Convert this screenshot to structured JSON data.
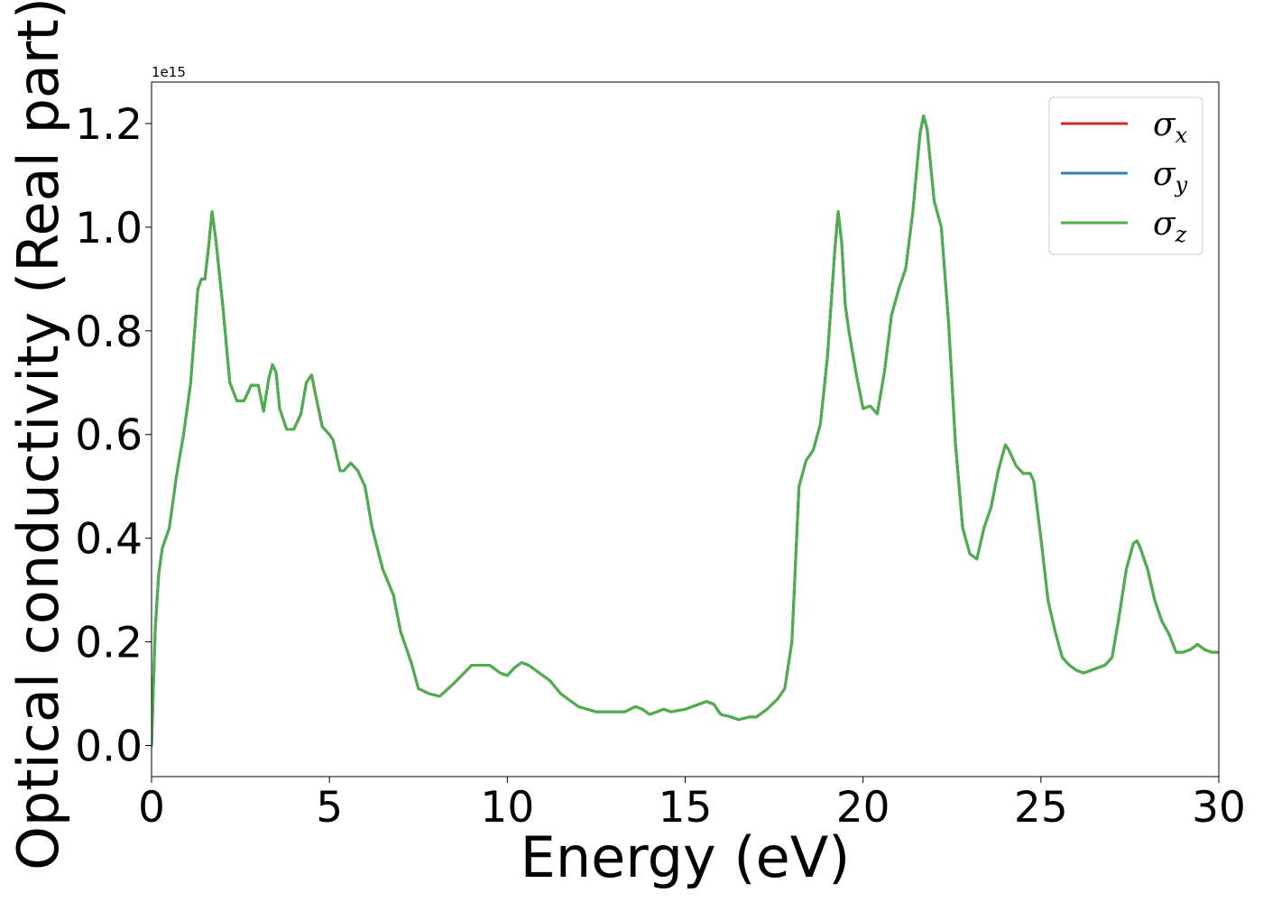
{
  "chart_data": {
    "type": "line",
    "xlabel": "Energy (eV)",
    "ylabel": "Optical conductivity (Real part)",
    "y_offset_text": "1e15",
    "y_scale_multiplier": 1000000000000000.0,
    "xlim": [
      0,
      30
    ],
    "ylim": [
      -0.06,
      1.28
    ],
    "x_ticks": [
      0,
      5,
      10,
      15,
      20,
      25,
      30
    ],
    "x_tick_labels": [
      "0",
      "5",
      "10",
      "15",
      "20",
      "25",
      "30"
    ],
    "y_ticks": [
      0.0,
      0.2,
      0.4,
      0.6,
      0.8,
      1.0,
      1.2
    ],
    "y_tick_labels": [
      "0.0",
      "0.2",
      "0.4",
      "0.6",
      "0.8",
      "1.0",
      "1.2"
    ],
    "grid": false,
    "legend_position": "top-right",
    "x": [
      0.0,
      0.1,
      0.2,
      0.3,
      0.5,
      0.7,
      0.9,
      1.1,
      1.3,
      1.4,
      1.5,
      1.6,
      1.7,
      1.8,
      2.0,
      2.2,
      2.4,
      2.6,
      2.8,
      3.0,
      3.15,
      3.3,
      3.4,
      3.5,
      3.6,
      3.8,
      4.0,
      4.2,
      4.35,
      4.5,
      4.6,
      4.8,
      5.0,
      5.1,
      5.3,
      5.4,
      5.6,
      5.8,
      6.0,
      6.2,
      6.5,
      6.8,
      7.0,
      7.3,
      7.5,
      7.8,
      8.1,
      8.5,
      9.0,
      9.5,
      9.8,
      10.0,
      10.2,
      10.4,
      10.6,
      10.8,
      11.0,
      11.2,
      11.5,
      12.0,
      12.5,
      13.0,
      13.3,
      13.6,
      13.8,
      14.0,
      14.2,
      14.4,
      14.6,
      15.0,
      15.4,
      15.6,
      15.8,
      16.0,
      16.3,
      16.5,
      16.8,
      17.0,
      17.3,
      17.6,
      17.8,
      18.0,
      18.1,
      18.2,
      18.4,
      18.6,
      18.8,
      19.0,
      19.2,
      19.3,
      19.4,
      19.5,
      19.6,
      19.8,
      20.0,
      20.2,
      20.4,
      20.6,
      20.8,
      21.0,
      21.2,
      21.4,
      21.6,
      21.7,
      21.8,
      22.0,
      22.2,
      22.4,
      22.6,
      22.8,
      23.0,
      23.2,
      23.4,
      23.6,
      23.8,
      24.0,
      24.1,
      24.3,
      24.5,
      24.7,
      24.8,
      25.0,
      25.2,
      25.4,
      25.6,
      25.8,
      26.0,
      26.2,
      26.4,
      26.6,
      26.8,
      27.0,
      27.2,
      27.4,
      27.6,
      27.7,
      27.8,
      28.0,
      28.2,
      28.4,
      28.6,
      28.8,
      29.0,
      29.2,
      29.4,
      29.6,
      29.8,
      30.0
    ],
    "series": [
      {
        "name": "σx",
        "color": "#d62728",
        "values": [
          0.0,
          0.22,
          0.33,
          0.38,
          0.42,
          0.52,
          0.6,
          0.7,
          0.88,
          0.9,
          0.9,
          0.96,
          1.03,
          0.98,
          0.85,
          0.7,
          0.665,
          0.665,
          0.695,
          0.695,
          0.645,
          0.71,
          0.735,
          0.72,
          0.65,
          0.61,
          0.61,
          0.64,
          0.7,
          0.715,
          0.68,
          0.615,
          0.6,
          0.59,
          0.53,
          0.53,
          0.545,
          0.53,
          0.5,
          0.42,
          0.34,
          0.29,
          0.22,
          0.16,
          0.11,
          0.1,
          0.095,
          0.12,
          0.155,
          0.155,
          0.14,
          0.135,
          0.15,
          0.16,
          0.155,
          0.145,
          0.135,
          0.125,
          0.1,
          0.075,
          0.065,
          0.065,
          0.065,
          0.075,
          0.07,
          0.06,
          0.065,
          0.07,
          0.065,
          0.07,
          0.08,
          0.085,
          0.08,
          0.06,
          0.055,
          0.05,
          0.055,
          0.055,
          0.07,
          0.09,
          0.11,
          0.2,
          0.35,
          0.5,
          0.55,
          0.57,
          0.62,
          0.75,
          0.95,
          1.03,
          0.97,
          0.85,
          0.8,
          0.72,
          0.65,
          0.655,
          0.64,
          0.72,
          0.83,
          0.88,
          0.92,
          1.03,
          1.18,
          1.215,
          1.19,
          1.05,
          1.0,
          0.82,
          0.58,
          0.42,
          0.37,
          0.36,
          0.42,
          0.46,
          0.53,
          0.58,
          0.57,
          0.54,
          0.525,
          0.525,
          0.51,
          0.4,
          0.28,
          0.22,
          0.17,
          0.155,
          0.145,
          0.14,
          0.145,
          0.15,
          0.155,
          0.17,
          0.25,
          0.34,
          0.39,
          0.395,
          0.38,
          0.34,
          0.28,
          0.24,
          0.215,
          0.18,
          0.18,
          0.185,
          0.195,
          0.185,
          0.18,
          0.18
        ]
      },
      {
        "name": "σy",
        "color": "#377eb8",
        "values": [
          0.0,
          0.22,
          0.33,
          0.38,
          0.42,
          0.52,
          0.6,
          0.7,
          0.88,
          0.9,
          0.9,
          0.96,
          1.03,
          0.98,
          0.85,
          0.7,
          0.665,
          0.665,
          0.695,
          0.695,
          0.645,
          0.71,
          0.735,
          0.72,
          0.65,
          0.61,
          0.61,
          0.64,
          0.7,
          0.715,
          0.68,
          0.615,
          0.6,
          0.59,
          0.53,
          0.53,
          0.545,
          0.53,
          0.5,
          0.42,
          0.34,
          0.29,
          0.22,
          0.16,
          0.11,
          0.1,
          0.095,
          0.12,
          0.155,
          0.155,
          0.14,
          0.135,
          0.15,
          0.16,
          0.155,
          0.145,
          0.135,
          0.125,
          0.1,
          0.075,
          0.065,
          0.065,
          0.065,
          0.075,
          0.07,
          0.06,
          0.065,
          0.07,
          0.065,
          0.07,
          0.08,
          0.085,
          0.08,
          0.06,
          0.055,
          0.05,
          0.055,
          0.055,
          0.07,
          0.09,
          0.11,
          0.2,
          0.35,
          0.5,
          0.55,
          0.57,
          0.62,
          0.75,
          0.95,
          1.03,
          0.97,
          0.85,
          0.8,
          0.72,
          0.65,
          0.655,
          0.64,
          0.72,
          0.83,
          0.88,
          0.92,
          1.03,
          1.18,
          1.215,
          1.19,
          1.05,
          1.0,
          0.82,
          0.58,
          0.42,
          0.37,
          0.36,
          0.42,
          0.46,
          0.53,
          0.58,
          0.57,
          0.54,
          0.525,
          0.525,
          0.51,
          0.4,
          0.28,
          0.22,
          0.17,
          0.155,
          0.145,
          0.14,
          0.145,
          0.15,
          0.155,
          0.17,
          0.25,
          0.34,
          0.39,
          0.395,
          0.38,
          0.34,
          0.28,
          0.24,
          0.215,
          0.18,
          0.18,
          0.185,
          0.195,
          0.185,
          0.18,
          0.18
        ]
      },
      {
        "name": "σz",
        "color": "#4daf4a",
        "values": [
          0.0,
          0.22,
          0.33,
          0.38,
          0.42,
          0.52,
          0.6,
          0.7,
          0.88,
          0.9,
          0.9,
          0.96,
          1.03,
          0.98,
          0.85,
          0.7,
          0.665,
          0.665,
          0.695,
          0.695,
          0.645,
          0.71,
          0.735,
          0.72,
          0.65,
          0.61,
          0.61,
          0.64,
          0.7,
          0.715,
          0.68,
          0.615,
          0.6,
          0.59,
          0.53,
          0.53,
          0.545,
          0.53,
          0.5,
          0.42,
          0.34,
          0.29,
          0.22,
          0.16,
          0.11,
          0.1,
          0.095,
          0.12,
          0.155,
          0.155,
          0.14,
          0.135,
          0.15,
          0.16,
          0.155,
          0.145,
          0.135,
          0.125,
          0.1,
          0.075,
          0.065,
          0.065,
          0.065,
          0.075,
          0.07,
          0.06,
          0.065,
          0.07,
          0.065,
          0.07,
          0.08,
          0.085,
          0.08,
          0.06,
          0.055,
          0.05,
          0.055,
          0.055,
          0.07,
          0.09,
          0.11,
          0.2,
          0.35,
          0.5,
          0.55,
          0.57,
          0.62,
          0.75,
          0.95,
          1.03,
          0.97,
          0.85,
          0.8,
          0.72,
          0.65,
          0.655,
          0.64,
          0.72,
          0.83,
          0.88,
          0.92,
          1.03,
          1.18,
          1.215,
          1.19,
          1.05,
          1.0,
          0.82,
          0.58,
          0.42,
          0.37,
          0.36,
          0.42,
          0.46,
          0.53,
          0.58,
          0.57,
          0.54,
          0.525,
          0.525,
          0.51,
          0.4,
          0.28,
          0.22,
          0.17,
          0.155,
          0.145,
          0.14,
          0.145,
          0.15,
          0.155,
          0.17,
          0.25,
          0.34,
          0.39,
          0.395,
          0.38,
          0.34,
          0.28,
          0.24,
          0.215,
          0.18,
          0.18,
          0.185,
          0.195,
          0.185,
          0.18,
          0.18
        ]
      }
    ],
    "legend": [
      {
        "symbol": "σ",
        "subscript": "x",
        "color": "#d62728"
      },
      {
        "symbol": "σ",
        "subscript": "y",
        "color": "#377eb8"
      },
      {
        "symbol": "σ",
        "subscript": "z",
        "color": "#4daf4a"
      }
    ]
  }
}
